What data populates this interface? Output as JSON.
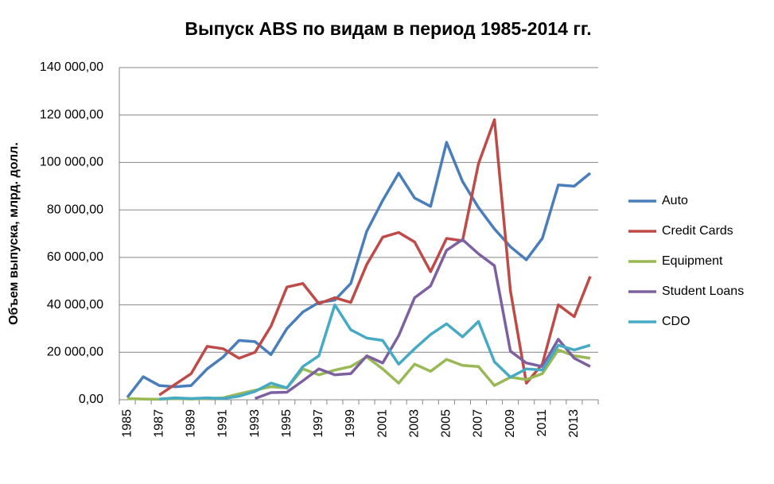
{
  "chart_data": {
    "type": "line",
    "title": "Выпуск ABS по видам в период 1985-2014 гг.",
    "y_label": "Объем выпуска, млрд. долл.",
    "categories": [
      "1985",
      null,
      "1987",
      null,
      "1989",
      null,
      "1991",
      null,
      "1993",
      null,
      "1995",
      null,
      "1997",
      null,
      "1999",
      null,
      "2001",
      null,
      "2003",
      null,
      "2005",
      null,
      "2007",
      null,
      "2009",
      null,
      "2011",
      null,
      "2013",
      null
    ],
    "series": [
      {
        "name": "Auto",
        "color": "#4a7ebb",
        "values": [
          1000,
          9700,
          6000,
          5500,
          6000,
          13000,
          18000,
          25000,
          24500,
          19000,
          30000,
          37000,
          41000,
          42000,
          49000,
          71000,
          84000,
          95500,
          85000,
          81500,
          108500,
          92000,
          81000,
          72000,
          64500,
          59000,
          68000,
          90500,
          90000,
          95500
        ]
      },
      {
        "name": "Credit Cards",
        "color": "#be4b48",
        "values": [
          null,
          null,
          2000,
          6500,
          11000,
          22500,
          21500,
          17500,
          20000,
          31000,
          47500,
          49000,
          40500,
          43000,
          41000,
          57000,
          68500,
          70500,
          66500,
          54000,
          68000,
          67000,
          99500,
          118000,
          46000,
          7000,
          15000,
          40000,
          35000,
          52000
        ]
      },
      {
        "name": "Equipment",
        "color": "#98b954",
        "values": [
          500,
          300,
          200,
          500,
          300,
          500,
          800,
          2500,
          4000,
          5500,
          5000,
          13000,
          10500,
          12500,
          14000,
          18000,
          13000,
          7000,
          15000,
          12000,
          17000,
          14500,
          14000,
          6000,
          9500,
          8500,
          11000,
          21000,
          18500,
          17500
        ]
      },
      {
        "name": "Student Loans",
        "color": "#7d60a0",
        "values": [
          null,
          null,
          null,
          null,
          null,
          null,
          null,
          null,
          500,
          3000,
          3200,
          8000,
          13000,
          10500,
          11000,
          18500,
          15500,
          27000,
          43000,
          48000,
          63000,
          67500,
          61500,
          56500,
          20500,
          15500,
          14000,
          25500,
          17500,
          14000
        ]
      },
      {
        "name": "CDO",
        "color": "#46aac5",
        "values": [
          null,
          null,
          300,
          800,
          500,
          800,
          500,
          1500,
          3500,
          7000,
          5000,
          14000,
          18500,
          40000,
          29500,
          26000,
          25000,
          15000,
          21500,
          27500,
          32000,
          26500,
          33000,
          16000,
          9500,
          13000,
          12500,
          23000,
          21000,
          23000
        ]
      }
    ],
    "ylim": [
      0,
      140000
    ],
    "yticks": [
      {
        "value": 0,
        "label": "0,00"
      },
      {
        "value": 20000,
        "label": "20 000,00"
      },
      {
        "value": 40000,
        "label": "40 000,00"
      },
      {
        "value": 60000,
        "label": "60 000,00"
      },
      {
        "value": 80000,
        "label": "80 000,00"
      },
      {
        "value": 100000,
        "label": "100 000,00"
      },
      {
        "value": 120000,
        "label": "120 000,00"
      },
      {
        "value": 140000,
        "label": "140 000,00"
      }
    ],
    "grid": true,
    "legend": "right"
  }
}
